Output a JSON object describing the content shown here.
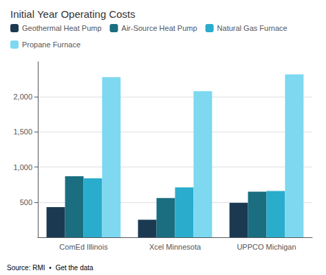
{
  "chart_data": {
    "type": "bar",
    "title": "Initial Year Operating Costs",
    "categories": [
      "ComEd Illinois",
      "Xcel Minnesota",
      "UPPCO Michigan"
    ],
    "series": [
      {
        "name": "Geothermal Heat Pump",
        "color": "#1b3a52",
        "values": [
          430,
          250,
          490
        ]
      },
      {
        "name": "Air-Source Heat Pump",
        "color": "#1a6e80",
        "values": [
          870,
          560,
          650
        ]
      },
      {
        "name": "Natural Gas Furnace",
        "color": "#2aaccc",
        "values": [
          840,
          710,
          660
        ]
      },
      {
        "name": "Propane Furnace",
        "color": "#7dd8f0",
        "values": [
          2280,
          2080,
          2320
        ]
      }
    ],
    "ylim": [
      0,
      2500
    ],
    "yticks": [
      500,
      {
        "value": 1000,
        "label": "1,000"
      },
      {
        "value": 1500,
        "label": "1,500"
      },
      {
        "value": 2000,
        "label": "2,000"
      }
    ],
    "grid": true,
    "legend": "upper left",
    "annotations": [
      "Source: RMI  •",
      "Get the data"
    ]
  }
}
